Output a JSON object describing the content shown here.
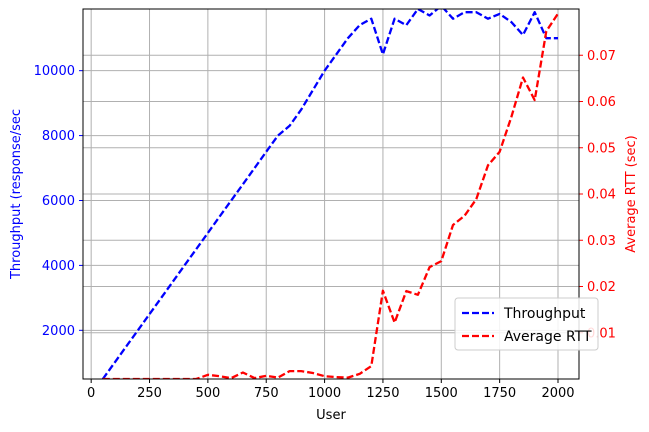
{
  "chart_data": {
    "type": "line",
    "xlabel": "User",
    "ylabel_left": "Throughput (response/sec",
    "ylabel_right": "Average RTT (sec)",
    "xlim": [
      -35,
      2090
    ],
    "ylim_left": [
      500,
      11900
    ],
    "ylim_right": [
      0.0,
      0.08
    ],
    "x_ticks": [
      0,
      250,
      500,
      750,
      1000,
      1250,
      1500,
      1750,
      2000
    ],
    "y_ticks_left": [
      2000,
      4000,
      6000,
      8000,
      10000
    ],
    "y_ticks_right": [
      0.01,
      0.02,
      0.03,
      0.04,
      0.05,
      0.06,
      0.07
    ],
    "grid": true,
    "legend_location": "lower-right",
    "colors": {
      "throughput": "#0000ff",
      "rtt": "#ff0000",
      "grid": "#b0b0b0"
    },
    "x": [
      50,
      100,
      150,
      200,
      250,
      300,
      350,
      400,
      450,
      500,
      550,
      600,
      650,
      700,
      750,
      800,
      850,
      900,
      950,
      1000,
      1050,
      1100,
      1150,
      1200,
      1250,
      1300,
      1350,
      1400,
      1450,
      1500,
      1550,
      1600,
      1650,
      1700,
      1750,
      1800,
      1850,
      1900,
      1950,
      2000
    ],
    "series": [
      {
        "name": "Throughput",
        "axis": "left",
        "style": "dashed",
        "values": [
          500,
          1000,
          1500,
          2000,
          2500,
          3000,
          3500,
          4000,
          4500,
          5000,
          5500,
          6000,
          6500,
          7000,
          7500,
          8000,
          8300,
          8800,
          9400,
          10000,
          10500,
          11000,
          11400,
          11600,
          10500,
          11600,
          11400,
          11900,
          11700,
          12000,
          11600,
          11800,
          11800,
          11600,
          11750,
          11500,
          11100,
          11800,
          11000,
          11000
        ]
      },
      {
        "name": "Average RTT",
        "axis": "right",
        "style": "dashed",
        "values": [
          0.0,
          0.0,
          0.0,
          0.0,
          0.0,
          0.0,
          0.0,
          0.0,
          0.0,
          0.0009,
          0.0006,
          0.0002,
          0.0014,
          0.0002,
          0.0007,
          0.0003,
          0.0017,
          0.0017,
          0.0013,
          0.0006,
          0.0004,
          0.0003,
          0.0011,
          0.0028,
          0.0191,
          0.0122,
          0.019,
          0.0182,
          0.0242,
          0.0255,
          0.0333,
          0.0353,
          0.0389,
          0.0462,
          0.0491,
          0.0566,
          0.0652,
          0.0603,
          0.0752,
          0.079
        ]
      }
    ]
  }
}
